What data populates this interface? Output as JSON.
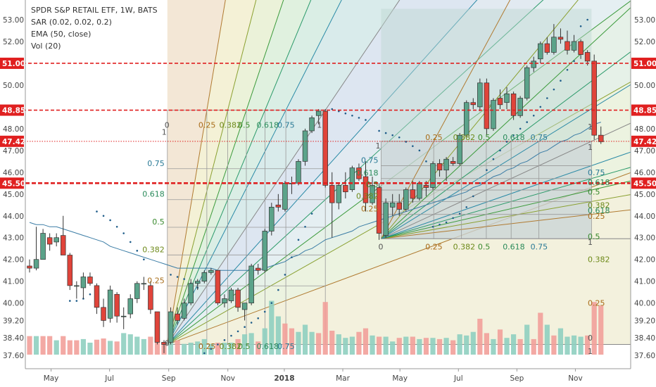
{
  "legend": {
    "title": "SPDR S&P RETAIL ETF, 1W, BATS",
    "sar": "SAR (0.02, 0.02, 0.2)",
    "ema": "EMA (50, close)",
    "vol": "Vol (20)"
  },
  "chart_data": {
    "type": "candlestick",
    "price_axis": {
      "ticks": [
        "53.00",
        "52.00",
        "51.00",
        "50.00",
        "48.85",
        "48.00",
        "47.42",
        "47.00",
        "46.00",
        "45.50",
        "45.00",
        "44.00",
        "43.00",
        "42.00",
        "41.00",
        "40.00",
        "39.20",
        "38.40",
        "37.60"
      ],
      "tick_values": [
        53.0,
        52.0,
        51.0,
        50.0,
        48.0,
        47.0,
        46.0,
        45.0,
        44.0,
        43.0,
        42.0,
        41.0,
        40.0,
        39.2,
        38.4,
        37.6
      ]
    },
    "time_axis": {
      "labels": [
        "May",
        "Jul",
        "Sep",
        "Nov",
        "2018",
        "Mar",
        "May",
        "Jul",
        "Sep",
        "Nov"
      ]
    },
    "horizontal_lines": [
      {
        "value": 51.0,
        "label": "51.00",
        "color": "#e02020",
        "style": "dashed"
      },
      {
        "value": 48.85,
        "label": "48.85",
        "color": "#e02020",
        "style": "dashed"
      },
      {
        "value": 47.42,
        "label": "47.42",
        "color": "#e02020",
        "style": "dotted"
      },
      {
        "value": 45.5,
        "label": "45.50",
        "color": "#e02020",
        "style": "dashed-thick"
      }
    ],
    "colors": {
      "up": "#5ba38a",
      "down": "#e0443a",
      "vol_up": "#8fcfc0",
      "vol_down": "#f2a09a",
      "ema": "#3a7ca5",
      "sar": "#1f5d8a"
    },
    "fib_fan_1": {
      "levels": [
        "0",
        "0.25",
        "0.382",
        "0.5",
        "0.618",
        "0.75",
        "1"
      ],
      "level_values": [
        0,
        0.25,
        0.382,
        0.5,
        0.618,
        0.75,
        1
      ]
    },
    "fib_fan_2": {
      "levels": [
        "0",
        "0.25",
        "0.382",
        "0.5",
        "0.618",
        "0.75",
        "1"
      ],
      "level_values": [
        0,
        0.25,
        0.382,
        0.5,
        0.618,
        0.75,
        1
      ]
    },
    "candles": [
      [
        41.7,
        42.0,
        41.4,
        41.6
      ],
      [
        41.6,
        43.5,
        41.5,
        42.0
      ],
      [
        42.0,
        43.4,
        42.0,
        43.2
      ],
      [
        43.0,
        43.2,
        42.4,
        42.7
      ],
      [
        42.8,
        43.2,
        42.6,
        43.0
      ],
      [
        43.1,
        44.0,
        42.3,
        42.2
      ],
      [
        42.2,
        42.3,
        40.6,
        40.8
      ],
      [
        40.8,
        41.0,
        40.2,
        40.8
      ],
      [
        40.7,
        41.4,
        40.2,
        41.2
      ],
      [
        41.2,
        41.4,
        40.8,
        40.9
      ],
      [
        40.8,
        40.9,
        39.5,
        39.8
      ],
      [
        39.8,
        40.2,
        38.9,
        39.2
      ],
      [
        39.3,
        40.8,
        39.1,
        40.6
      ],
      [
        40.4,
        40.5,
        39.1,
        39.4
      ],
      [
        39.4,
        39.8,
        38.8,
        39.4
      ],
      [
        39.5,
        40.4,
        39.3,
        40.2
      ],
      [
        40.2,
        41.0,
        40.0,
        40.9
      ],
      [
        40.9,
        41.2,
        40.6,
        40.9
      ],
      [
        40.8,
        41.0,
        39.5,
        39.7
      ],
      [
        39.6,
        39.6,
        38.1,
        38.2
      ],
      [
        38.2,
        38.3,
        37.7,
        38.1
      ],
      [
        38.2,
        39.8,
        38.1,
        39.6
      ],
      [
        39.5,
        39.8,
        39.0,
        39.2
      ],
      [
        39.3,
        40.2,
        39.2,
        40.0
      ],
      [
        40.0,
        41.1,
        39.9,
        40.9
      ],
      [
        40.9,
        41.1,
        40.6,
        41.0
      ],
      [
        41.0,
        41.5,
        40.9,
        41.4
      ],
      [
        41.4,
        41.6,
        41.3,
        41.5
      ],
      [
        41.5,
        41.5,
        39.9,
        40.0
      ],
      [
        40.0,
        40.4,
        39.8,
        40.2
      ],
      [
        40.1,
        40.7,
        40.0,
        40.6
      ],
      [
        40.6,
        40.7,
        39.6,
        39.8
      ],
      [
        39.7,
        40.0,
        39.2,
        40.0
      ],
      [
        40.0,
        41.8,
        39.9,
        41.7
      ],
      [
        41.6,
        41.8,
        41.3,
        41.5
      ],
      [
        41.5,
        43.4,
        41.4,
        43.3
      ],
      [
        43.3,
        44.6,
        43.1,
        44.4
      ],
      [
        44.5,
        45.0,
        44.2,
        44.4
      ],
      [
        44.3,
        45.6,
        44.2,
        45.5
      ],
      [
        45.5,
        45.8,
        45.0,
        45.5
      ],
      [
        45.5,
        46.6,
        45.4,
        46.5
      ],
      [
        46.5,
        48.0,
        46.3,
        47.9
      ],
      [
        47.9,
        48.6,
        47.8,
        48.5
      ],
      [
        48.6,
        48.9,
        48.2,
        48.8
      ],
      [
        48.8,
        48.9,
        45.3,
        45.4
      ],
      [
        45.4,
        46.0,
        43.0,
        44.6
      ],
      [
        44.6,
        45.5,
        44.3,
        45.4
      ],
      [
        45.4,
        46.0,
        44.8,
        45.1
      ],
      [
        45.2,
        46.3,
        45.1,
        46.2
      ],
      [
        46.2,
        46.4,
        45.6,
        45.7
      ],
      [
        45.8,
        46.5,
        44.2,
        44.6
      ],
      [
        44.6,
        45.8,
        44.5,
        45.4
      ],
      [
        45.3,
        45.5,
        42.9,
        43.2
      ],
      [
        43.1,
        44.8,
        43.0,
        44.6
      ],
      [
        44.4,
        45.0,
        44.0,
        44.6
      ],
      [
        44.6,
        45.0,
        44.0,
        44.3
      ],
      [
        44.3,
        45.3,
        44.2,
        45.2
      ],
      [
        45.2,
        45.6,
        44.6,
        44.8
      ],
      [
        44.8,
        45.6,
        44.7,
        45.5
      ],
      [
        45.4,
        45.6,
        44.9,
        45.3
      ],
      [
        45.3,
        46.5,
        45.2,
        46.4
      ],
      [
        46.4,
        46.6,
        45.8,
        46.1
      ],
      [
        46.1,
        46.7,
        45.6,
        46.6
      ],
      [
        46.5,
        46.7,
        46.3,
        46.4
      ],
      [
        46.4,
        47.8,
        46.3,
        47.7
      ],
      [
        47.7,
        49.3,
        47.6,
        49.2
      ],
      [
        49.2,
        49.4,
        48.9,
        49.1
      ],
      [
        49.0,
        50.3,
        48.8,
        50.1
      ],
      [
        50.1,
        50.3,
        47.7,
        48.0
      ],
      [
        48.0,
        49.4,
        47.9,
        49.3
      ],
      [
        49.4,
        49.8,
        48.9,
        49.1
      ],
      [
        49.2,
        49.9,
        48.9,
        49.6
      ],
      [
        49.6,
        49.7,
        48.4,
        48.6
      ],
      [
        48.6,
        49.5,
        48.5,
        49.4
      ],
      [
        49.4,
        50.9,
        49.3,
        50.8
      ],
      [
        50.8,
        51.3,
        50.6,
        51.1
      ],
      [
        51.2,
        52.0,
        51.0,
        51.9
      ],
      [
        51.9,
        52.2,
        51.4,
        51.5
      ],
      [
        51.5,
        52.8,
        51.4,
        52.2
      ],
      [
        52.2,
        52.6,
        51.9,
        52.1
      ],
      [
        52.0,
        52.5,
        51.4,
        51.6
      ],
      [
        51.6,
        52.3,
        51.5,
        52.0
      ],
      [
        52.0,
        52.1,
        51.2,
        51.4
      ],
      [
        51.5,
        51.6,
        50.9,
        51.1
      ],
      [
        51.1,
        51.4,
        47.5,
        47.7
      ],
      [
        47.7,
        48.1,
        47.3,
        47.4
      ]
    ],
    "volumes": [
      [
        1.55,
        "d"
      ],
      [
        1.55,
        "u"
      ],
      [
        1.55,
        "d"
      ],
      [
        1.55,
        "d"
      ],
      [
        1.2,
        "u"
      ],
      [
        1.55,
        "d"
      ],
      [
        1.2,
        "d"
      ],
      [
        1.2,
        "d"
      ],
      [
        1.3,
        "u"
      ],
      [
        1.0,
        "u"
      ],
      [
        1.25,
        "d"
      ],
      [
        1.35,
        "d"
      ],
      [
        1.15,
        "u"
      ],
      [
        1.1,
        "d"
      ],
      [
        1.8,
        "u"
      ],
      [
        1.7,
        "u"
      ],
      [
        1.5,
        "u"
      ],
      [
        1.3,
        "u"
      ],
      [
        1.5,
        "d"
      ],
      [
        1.45,
        "d"
      ],
      [
        0.9,
        "d"
      ],
      [
        1.2,
        "u"
      ],
      [
        1.2,
        "d"
      ],
      [
        0.9,
        "u"
      ],
      [
        1.0,
        "u"
      ],
      [
        1.1,
        "u"
      ],
      [
        1.3,
        "u"
      ],
      [
        0.9,
        "u"
      ],
      [
        1.0,
        "d"
      ],
      [
        1.0,
        "u"
      ],
      [
        1.0,
        "u"
      ],
      [
        1.3,
        "d"
      ],
      [
        1.7,
        "u"
      ],
      [
        1.8,
        "u"
      ],
      [
        1.1,
        "d"
      ],
      [
        2.2,
        "u"
      ],
      [
        4.5,
        "u"
      ],
      [
        3.2,
        "u"
      ],
      [
        2.6,
        "d"
      ],
      [
        2.2,
        "d"
      ],
      [
        1.9,
        "u"
      ],
      [
        2.5,
        "u"
      ],
      [
        1.9,
        "u"
      ],
      [
        1.8,
        "d"
      ],
      [
        4.4,
        "d"
      ],
      [
        2.0,
        "d"
      ],
      [
        1.7,
        "u"
      ],
      [
        1.4,
        "u"
      ],
      [
        1.5,
        "u"
      ],
      [
        1.9,
        "d"
      ],
      [
        2.2,
        "d"
      ],
      [
        1.6,
        "u"
      ],
      [
        1.5,
        "d"
      ],
      [
        1.5,
        "u"
      ],
      [
        1.1,
        "u"
      ],
      [
        1.4,
        "d"
      ],
      [
        1.5,
        "u"
      ],
      [
        1.5,
        "d"
      ],
      [
        1.3,
        "u"
      ],
      [
        1.4,
        "d"
      ],
      [
        1.4,
        "u"
      ],
      [
        1.3,
        "d"
      ],
      [
        1.4,
        "u"
      ],
      [
        1.2,
        "d"
      ],
      [
        1.7,
        "u"
      ],
      [
        1.6,
        "u"
      ],
      [
        1.9,
        "u"
      ],
      [
        3.0,
        "d"
      ],
      [
        1.8,
        "d"
      ],
      [
        1.3,
        "u"
      ],
      [
        2.1,
        "d"
      ],
      [
        1.4,
        "u"
      ],
      [
        1.7,
        "u"
      ],
      [
        1.3,
        "d"
      ],
      [
        2.5,
        "u"
      ],
      [
        1.3,
        "d"
      ],
      [
        3.5,
        "d"
      ],
      [
        2.5,
        "u"
      ],
      [
        1.6,
        "d"
      ],
      [
        2.2,
        "u"
      ],
      [
        1.5,
        "u"
      ],
      [
        1.6,
        "u"
      ],
      [
        1.5,
        "u"
      ],
      [
        1.6,
        "d"
      ],
      [
        4.4,
        "d"
      ],
      [
        4.1,
        "d"
      ]
    ],
    "ema": [
      43.7,
      43.6,
      43.6,
      43.5,
      43.5,
      43.4,
      43.3,
      43.2,
      43.1,
      43.0,
      42.9,
      42.8,
      42.6,
      42.5,
      42.4,
      42.3,
      42.2,
      42.1,
      42.0,
      41.9,
      41.8,
      41.7,
      41.6,
      41.6,
      41.6,
      41.6,
      41.6,
      41.6,
      41.5,
      41.5,
      41.5,
      41.5,
      41.5,
      41.5,
      41.5,
      41.6,
      41.7,
      41.8,
      41.9,
      42.1,
      42.2,
      42.4,
      42.5,
      42.7,
      42.9,
      43.0,
      43.1,
      43.2,
      43.3,
      43.5,
      43.6,
      43.7,
      43.8,
      43.9,
      44.0,
      44.1,
      44.2,
      44.3,
      44.4,
      44.5,
      44.6,
      44.7,
      44.8,
      44.9,
      45.0,
      45.1,
      45.3,
      45.4,
      45.6,
      45.8,
      45.9,
      46.1,
      46.2,
      46.4,
      46.5,
      46.7,
      46.9,
      47.0,
      47.2,
      47.4,
      47.5,
      47.7,
      47.8,
      48.0,
      48.2,
      48.3
    ],
    "sar": [
      [
        10,
        44.2
      ],
      [
        11,
        44.0
      ],
      [
        12,
        43.8
      ],
      [
        13,
        43.5
      ],
      [
        14,
        43.2
      ],
      [
        15,
        42.8
      ],
      [
        16,
        42.4
      ],
      [
        17,
        42.0
      ],
      [
        6,
        40.1
      ],
      [
        7,
        40.1
      ],
      [
        8,
        40.2
      ],
      [
        9,
        40.4
      ],
      [
        21,
        41.3
      ],
      [
        22,
        41.2
      ],
      [
        23,
        41.1
      ],
      [
        24,
        40.9
      ],
      [
        25,
        40.7
      ],
      [
        26,
        37.7
      ],
      [
        27,
        37.9
      ],
      [
        28,
        38.1
      ],
      [
        29,
        38.3
      ],
      [
        30,
        38.5
      ],
      [
        31,
        38.7
      ],
      [
        32,
        38.9
      ],
      [
        33,
        39.1
      ],
      [
        34,
        39.3
      ],
      [
        35,
        39.6
      ],
      [
        36,
        40.0
      ],
      [
        37,
        40.6
      ],
      [
        38,
        41.3
      ],
      [
        39,
        42.1
      ],
      [
        40,
        42.9
      ],
      [
        41,
        43.5
      ],
      [
        42,
        44.1
      ],
      [
        45,
        48.9
      ],
      [
        46,
        48.8
      ],
      [
        47,
        48.7
      ],
      [
        48,
        48.6
      ],
      [
        49,
        48.5
      ],
      [
        50,
        48.4
      ],
      [
        52,
        47.9
      ],
      [
        53,
        47.8
      ],
      [
        54,
        47.7
      ],
      [
        55,
        47.6
      ],
      [
        56,
        47.4
      ],
      [
        57,
        47.2
      ],
      [
        58,
        47.0
      ],
      [
        59,
        46.5
      ],
      [
        60,
        43.5
      ],
      [
        61,
        43.6
      ],
      [
        62,
        43.7
      ],
      [
        63,
        43.9
      ],
      [
        64,
        44.1
      ],
      [
        65,
        44.4
      ],
      [
        66,
        44.9
      ],
      [
        67,
        45.5
      ],
      [
        68,
        46.1
      ],
      [
        69,
        46.6
      ],
      [
        70,
        47.0
      ],
      [
        71,
        47.4
      ],
      [
        72,
        47.7
      ],
      [
        73,
        48.0
      ],
      [
        74,
        48.3
      ],
      [
        75,
        48.6
      ],
      [
        76,
        49.0
      ],
      [
        77,
        49.4
      ],
      [
        78,
        49.8
      ],
      [
        79,
        50.2
      ],
      [
        80,
        50.7
      ],
      [
        81,
        51.1
      ],
      [
        82,
        52.7
      ],
      [
        83,
        53.0
      ]
    ]
  }
}
